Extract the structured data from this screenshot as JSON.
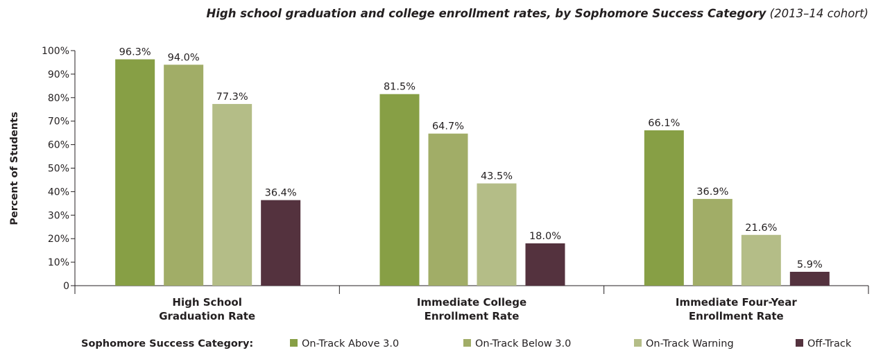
{
  "chart_data": {
    "type": "bar",
    "title": "High school graduation and college enrollment rates, by Sophomore Success Category",
    "subtitle": "(2013–14 cohort)",
    "ylabel": "Percent of Students",
    "xlabel": "",
    "ylim": [
      0,
      100
    ],
    "y_ticks": [
      "0",
      "10%",
      "20%",
      "30%",
      "40%",
      "50%",
      "60%",
      "70%",
      "80%",
      "90%",
      "100%"
    ],
    "grid": false,
    "categories": [
      [
        "High School",
        "Graduation Rate"
      ],
      [
        "Immediate College",
        "Enrollment Rate"
      ],
      [
        "Immediate Four-Year",
        "Enrollment Rate"
      ]
    ],
    "series": [
      {
        "name": "On-Track Above 3.0",
        "color": "#879f45",
        "values": [
          96.3,
          81.5,
          66.1
        ],
        "labels": [
          "96.3%",
          "81.5%",
          "66.1%"
        ]
      },
      {
        "name": "On-Track Below 3.0",
        "color": "#a1ad67",
        "values": [
          94.0,
          64.7,
          36.9
        ],
        "labels": [
          "94.0%",
          "64.7%",
          "36.9%"
        ]
      },
      {
        "name": "On-Track Warning",
        "color": "#b4bd87",
        "values": [
          77.3,
          43.5,
          21.6
        ],
        "labels": [
          "77.3%",
          "43.5%",
          "21.6%"
        ]
      },
      {
        "name": "Off-Track",
        "color": "#54323e",
        "values": [
          36.4,
          18.0,
          5.9
        ],
        "labels": [
          "36.4%",
          "18.0%",
          "5.9%"
        ]
      }
    ],
    "legend_title": "Sophomore Success Category:",
    "legend_position": "bottom"
  }
}
